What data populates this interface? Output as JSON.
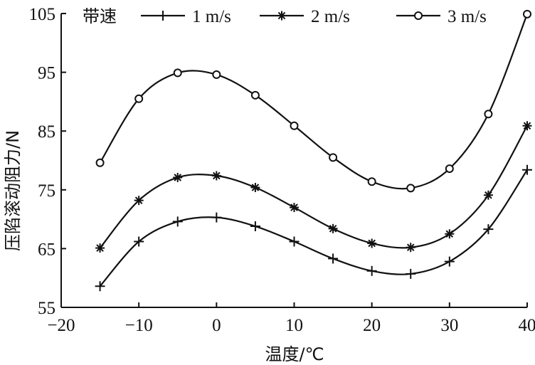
{
  "chart_data": {
    "type": "line",
    "title": "",
    "xlabel": "温度/℃",
    "ylabel": "压陷滚动阻力/N",
    "xlim": [
      -20,
      40
    ],
    "ylim": [
      55,
      105
    ],
    "xticks": [
      -20,
      -10,
      0,
      10,
      20,
      30,
      40
    ],
    "yticks": [
      55,
      65,
      75,
      85,
      95,
      105
    ],
    "x_tick_labels": [
      "−20",
      "−10",
      "0",
      "10",
      "20",
      "30",
      "40"
    ],
    "y_tick_labels": [
      "55",
      "65",
      "75",
      "85",
      "95",
      "105"
    ],
    "grid": false,
    "legend_position": "top",
    "legend_title": "带速",
    "x": [
      -15,
      -10,
      -5,
      0,
      5,
      10,
      15,
      20,
      25,
      30,
      35,
      40
    ],
    "series": [
      {
        "name": "1 m/s",
        "marker": "plus",
        "values": [
          58.6,
          66.2,
          69.6,
          70.3,
          68.8,
          66.2,
          63.3,
          61.2,
          60.7,
          62.8,
          68.3,
          78.4
        ]
      },
      {
        "name": "2 m/s",
        "marker": "asterisk",
        "values": [
          65.1,
          73.2,
          77.1,
          77.4,
          75.4,
          72.0,
          68.4,
          65.9,
          65.2,
          67.5,
          74.1,
          85.9
        ]
      },
      {
        "name": "3 m/s",
        "marker": "circle",
        "values": [
          79.6,
          90.5,
          94.9,
          94.6,
          91.1,
          85.9,
          80.5,
          76.4,
          75.3,
          78.6,
          87.9,
          104.9
        ]
      }
    ]
  }
}
